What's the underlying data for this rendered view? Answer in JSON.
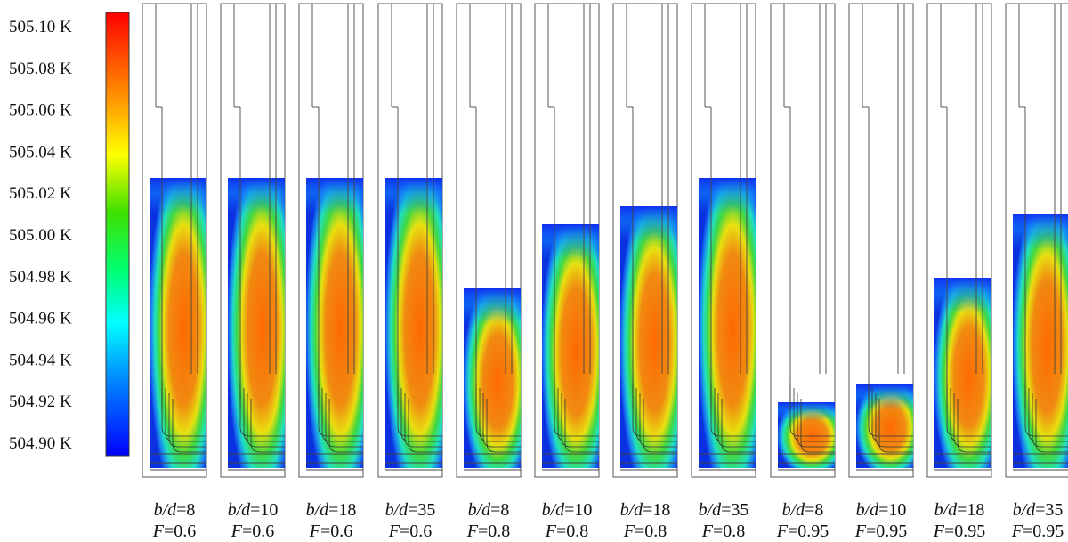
{
  "colorbar": {
    "ticks": [
      "505.10 K",
      "505.08 K",
      "505.06 K",
      "505.04 K",
      "505.02 K",
      "505.00 K",
      "504.98 K",
      "504.96 K",
      "504.94 K",
      "504.92 K",
      "504.90 K"
    ]
  },
  "panels": [
    {
      "bd_var": "b/d",
      "bd_value": "=8",
      "f_var": "F",
      "f_value": "=0.6",
      "fill": 0.78
    },
    {
      "bd_var": "b/d",
      "bd_value": "=10",
      "f_var": "F",
      "f_value": "=0.6",
      "fill": 0.78
    },
    {
      "bd_var": "b/d",
      "bd_value": "=18",
      "f_var": "F",
      "f_value": "=0.6",
      "fill": 0.78
    },
    {
      "bd_var": "b/d",
      "bd_value": "=35",
      "f_var": "F",
      "f_value": "=0.6",
      "fill": 0.78
    },
    {
      "bd_var": "b/d",
      "bd_value": "=8",
      "f_var": "F",
      "f_value": "=0.8",
      "fill": 0.47
    },
    {
      "bd_var": "b/d",
      "bd_value": "=10",
      "f_var": "F",
      "f_value": "=0.8",
      "fill": 0.65
    },
    {
      "bd_var": "b/d",
      "bd_value": "=18",
      "f_var": "F",
      "f_value": "=0.8",
      "fill": 0.7
    },
    {
      "bd_var": "b/d",
      "bd_value": "=35",
      "f_var": "F",
      "f_value": "=0.8",
      "fill": 0.78
    },
    {
      "bd_var": "b/d",
      "bd_value": "=8",
      "f_var": "F",
      "f_value": "=0.95",
      "fill": 0.15
    },
    {
      "bd_var": "b/d",
      "bd_value": "=10",
      "f_var": "F",
      "f_value": "=0.95",
      "fill": 0.2
    },
    {
      "bd_var": "b/d",
      "bd_value": "=18",
      "f_var": "F",
      "f_value": "=0.95",
      "fill": 0.5
    },
    {
      "bd_var": "b/d",
      "bd_value": "=35",
      "f_var": "F",
      "f_value": "=0.95",
      "fill": 0.68
    }
  ]
}
